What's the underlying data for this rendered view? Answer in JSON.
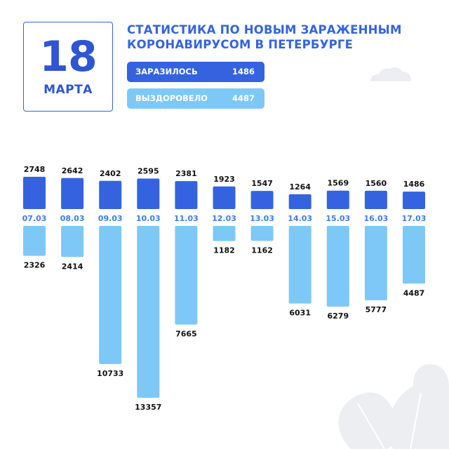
{
  "header": {
    "day": "18",
    "month": "МАРТА",
    "title_line1": "СТАТИСТИКА ПО НОВЫМ ЗАРАЖЕННЫМ",
    "title_line2": "КОРОНАВИРУСОМ В ПЕТЕРБУРГЕ"
  },
  "summary": {
    "infected_label": "ЗАРАЗИЛОСЬ",
    "infected_value": "1486",
    "recovered_label": "ВЫЗДОРОВЕЛО",
    "recovered_value": "4487"
  },
  "colors": {
    "infected": "#3563e0",
    "recovered": "#7ec8f8",
    "date_label": "#3d7de8",
    "decor": "#eceef1"
  },
  "chart_data": {
    "type": "bar",
    "categories": [
      "07.03",
      "08.03",
      "09.03",
      "10.03",
      "11.03",
      "12.03",
      "13.03",
      "14.03",
      "15.03",
      "16.03",
      "17.03"
    ],
    "series": [
      {
        "name": "ЗАРАЗИЛОСЬ",
        "values": [
          2748,
          2642,
          2402,
          2595,
          2381,
          1923,
          1547,
          1264,
          1569,
          1560,
          1486
        ]
      },
      {
        "name": "ВЫЗДОРОВЕЛО",
        "values": [
          2326,
          2414,
          10733,
          13357,
          7665,
          1182,
          1162,
          6031,
          6279,
          5777,
          4487
        ]
      }
    ],
    "title": "",
    "xlabel": "",
    "ylabel": "",
    "grid": false,
    "layout_note": "infected bars grow upward from date row, recovered bars grow downward"
  }
}
